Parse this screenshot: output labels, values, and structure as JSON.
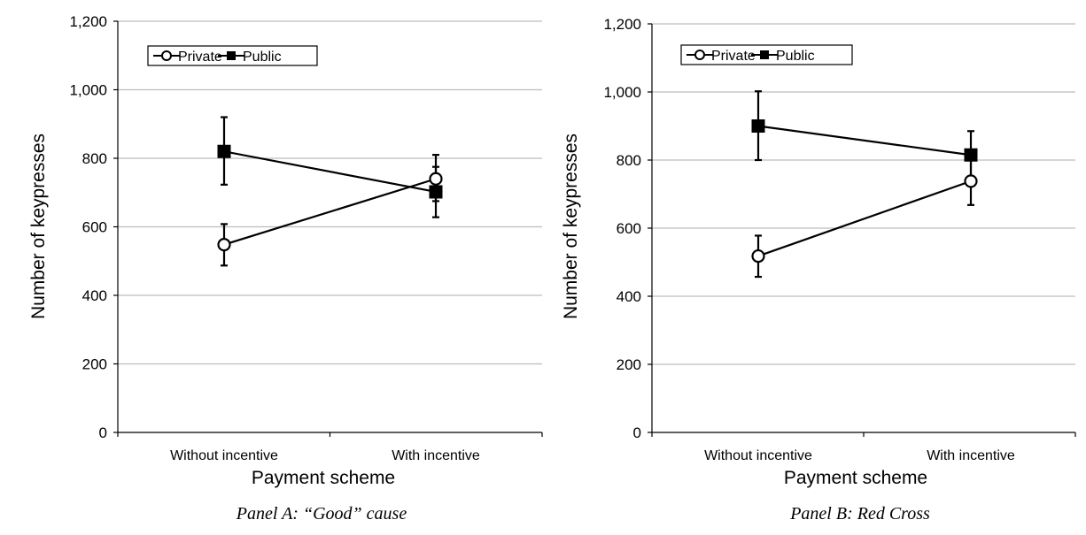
{
  "colors": {
    "line": "#000000",
    "grid": "#bdbdbd",
    "marker_fill_private": "#ffffff",
    "marker_fill_public": "#000000"
  },
  "chart_data": [
    {
      "type": "line",
      "caption": "Panel A: “Good” cause",
      "xlabel": "Payment scheme",
      "ylabel": "Number of keypresses",
      "ylim": [
        0,
        1200
      ],
      "yticks": [
        0,
        200,
        400,
        600,
        800,
        1000,
        1200
      ],
      "ytick_labels": [
        "0",
        "200",
        "400",
        "600",
        "800",
        "1,000",
        "1,200"
      ],
      "categories": [
        "Without incentive",
        "With incentive"
      ],
      "grid": true,
      "legend_position": "top-left",
      "series": [
        {
          "name": "Private",
          "marker": "open-circle",
          "values": [
            548,
            740
          ],
          "error_low": [
            487,
            675
          ],
          "error_high": [
            608,
            810
          ]
        },
        {
          "name": "Public",
          "marker": "filled-square",
          "values": [
            820,
            702
          ],
          "error_low": [
            723,
            628
          ],
          "error_high": [
            920,
            775
          ]
        }
      ]
    },
    {
      "type": "line",
      "caption": "Panel B: Red Cross",
      "xlabel": "Payment scheme",
      "ylabel": "Number of keypresses",
      "ylim": [
        0,
        1200
      ],
      "yticks": [
        0,
        200,
        400,
        600,
        800,
        1000,
        1200
      ],
      "ytick_labels": [
        "0",
        "200",
        "400",
        "600",
        "800",
        "1,000",
        "1,200"
      ],
      "categories": [
        "Without incentive",
        "With incentive"
      ],
      "grid": true,
      "legend_position": "top-left",
      "series": [
        {
          "name": "Private",
          "marker": "open-circle",
          "values": [
            518,
            738
          ],
          "error_low": [
            457,
            668
          ],
          "error_high": [
            578,
            805
          ]
        },
        {
          "name": "Public",
          "marker": "filled-square",
          "values": [
            900,
            815
          ],
          "error_low": [
            800,
            745
          ],
          "error_high": [
            1002,
            885
          ]
        }
      ]
    }
  ]
}
